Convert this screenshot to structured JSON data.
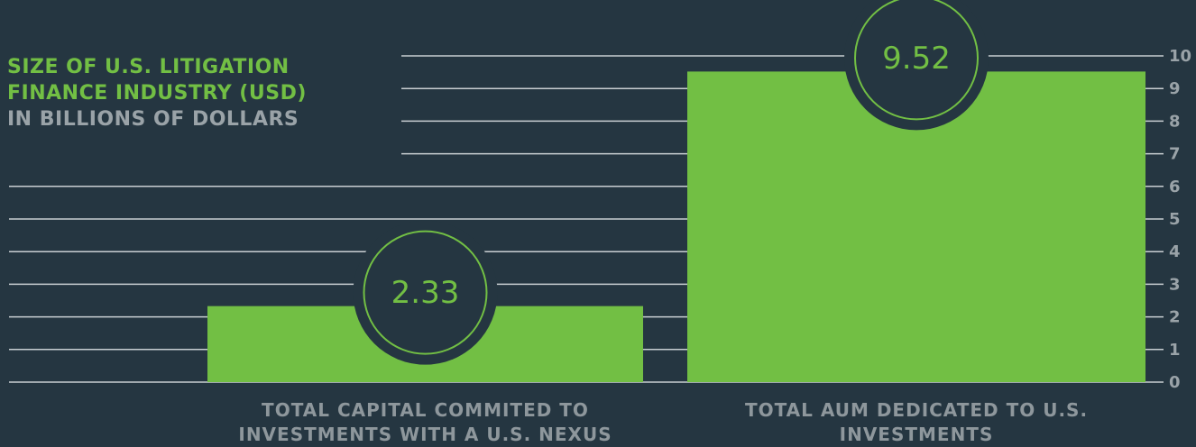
{
  "chart_data": {
    "type": "bar",
    "title": "SIZE OF U.S. LITIGATION FINANCE INDUSTRY (USD)",
    "subtitle": "IN BILLIONS OF DOLLARS",
    "categories": [
      "TOTAL CAPITAL COMMITED TO INVESTMENTS WITH A U.S. NEXUS",
      "TOTAL AUM DEDICATED TO U.S. INVESTMENTS"
    ],
    "values": [
      2.33,
      9.52
    ],
    "color": "#72bf44",
    "ylim": [
      0,
      10
    ],
    "yticks": [
      0,
      1,
      2,
      3,
      4,
      5,
      6,
      7,
      8,
      9,
      10
    ],
    "grid": true
  }
}
